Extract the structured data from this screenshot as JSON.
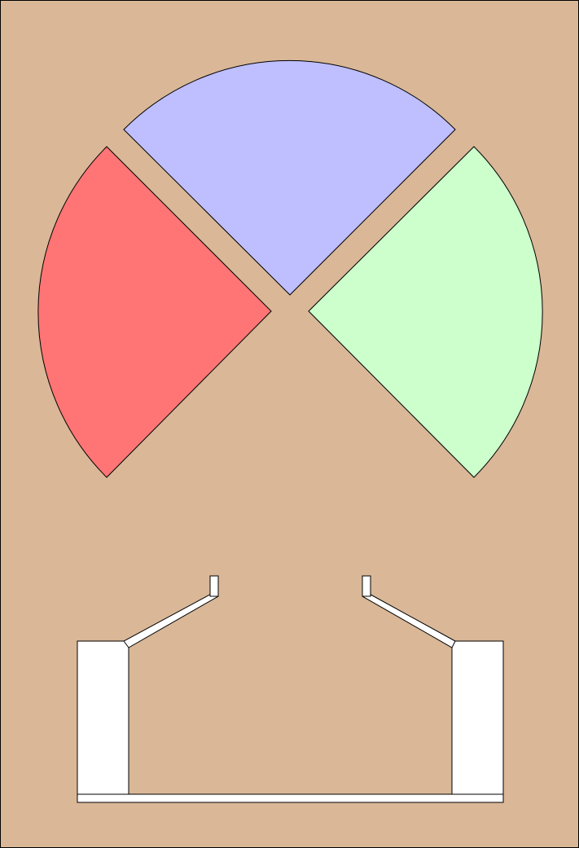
{
  "colors": {
    "background": "#d9b797",
    "outline": "#000000",
    "sector_left": "#ff7575",
    "sector_top": "#bfbfff",
    "sector_right": "#ccffcc",
    "rig": "#ffffff"
  },
  "sectors": [
    {
      "id": "left",
      "color_key": "sector_left"
    },
    {
      "id": "top",
      "color_key": "sector_top"
    },
    {
      "id": "right",
      "color_key": "sector_right"
    }
  ]
}
